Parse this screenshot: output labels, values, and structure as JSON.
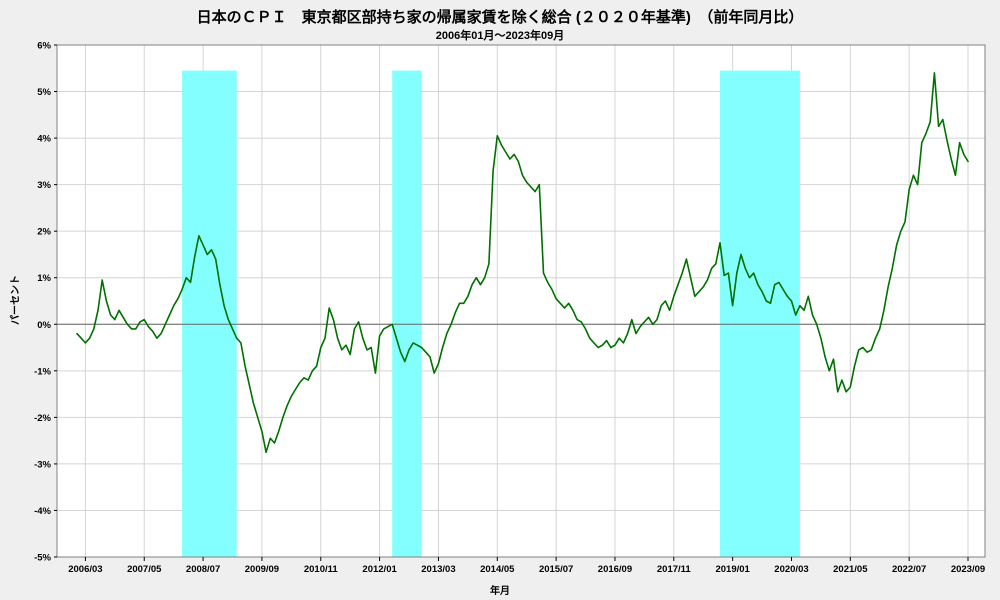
{
  "header": {
    "title": "日本のＣＰＩ　東京都区部持ち家の帰属家賃を除く総合 (２０２０年基準)　（前年同月比）",
    "subtitle": "2006年01月～2023年09月"
  },
  "chart_data": {
    "type": "line",
    "title": "日本のＣＰＩ　東京都区部持ち家の帰属家賃を除く総合 (２０２０年基準)　（前年同月比）",
    "subtitle": "2006年01月～2023年09月",
    "xlabel": "年月",
    "ylabel": "パーセント",
    "ylim": [
      -5,
      6
    ],
    "grid": true,
    "legend_position": "none",
    "y_ticks": [
      6,
      5,
      4,
      3,
      2,
      1,
      0,
      -1,
      -2,
      -3,
      -4,
      -5
    ],
    "y_tick_labels": [
      "6%",
      "5%",
      "4%",
      "3%",
      "2%",
      "1%",
      "0%",
      "-1%",
      "-2%",
      "-3%",
      "-4%",
      "-5%"
    ],
    "x_start": "2006/01",
    "x_end": "2023/09",
    "x_frequency": "monthly",
    "x_ticks": [
      {
        "index": 2,
        "label": "2006/03"
      },
      {
        "index": 16,
        "label": "2007/05"
      },
      {
        "index": 30,
        "label": "2008/07"
      },
      {
        "index": 44,
        "label": "2009/09"
      },
      {
        "index": 58,
        "label": "2010/11"
      },
      {
        "index": 72,
        "label": "2012/01"
      },
      {
        "index": 86,
        "label": "2013/03"
      },
      {
        "index": 100,
        "label": "2014/05"
      },
      {
        "index": 114,
        "label": "2015/07"
      },
      {
        "index": 128,
        "label": "2016/09"
      },
      {
        "index": 142,
        "label": "2017/11"
      },
      {
        "index": 156,
        "label": "2019/01"
      },
      {
        "index": 170,
        "label": "2020/03"
      },
      {
        "index": 184,
        "label": "2021/05"
      },
      {
        "index": 198,
        "label": "2022/07"
      },
      {
        "index": 212,
        "label": "2023/09"
      }
    ],
    "shaded_bands": {
      "color": "#84ffff",
      "top_value": 5.45,
      "periods": [
        {
          "from": "2008/02",
          "to": "2009/03",
          "start_index": 25,
          "end_index": 38
        },
        {
          "from": "2012/04",
          "to": "2012/11",
          "start_index": 75,
          "end_index": 82
        },
        {
          "from": "2018/10",
          "to": "2020/05",
          "start_index": 153,
          "end_index": 172
        }
      ]
    },
    "series": [
      {
        "name": "前年同月比",
        "color": "#007000",
        "values": [
          -0.2,
          -0.3,
          -0.4,
          -0.3,
          -0.1,
          0.3,
          0.95,
          0.5,
          0.2,
          0.1,
          0.3,
          0.15,
          0.0,
          -0.1,
          -0.1,
          0.05,
          0.1,
          -0.05,
          -0.15,
          -0.3,
          -0.2,
          0.0,
          0.2,
          0.4,
          0.55,
          0.75,
          1.0,
          0.9,
          1.45,
          1.9,
          1.7,
          1.5,
          1.6,
          1.4,
          0.85,
          0.4,
          0.1,
          -0.1,
          -0.3,
          -0.4,
          -0.9,
          -1.3,
          -1.7,
          -2.0,
          -2.3,
          -2.75,
          -2.45,
          -2.55,
          -2.3,
          -2.0,
          -1.75,
          -1.55,
          -1.4,
          -1.25,
          -1.15,
          -1.2,
          -1.0,
          -0.9,
          -0.5,
          -0.3,
          0.35,
          0.1,
          -0.3,
          -0.55,
          -0.45,
          -0.65,
          -0.1,
          0.05,
          -0.3,
          -0.55,
          -0.5,
          -1.05,
          -0.25,
          -0.1,
          -0.05,
          0.0,
          -0.3,
          -0.6,
          -0.8,
          -0.55,
          -0.4,
          -0.45,
          -0.5,
          -0.6,
          -0.7,
          -1.05,
          -0.85,
          -0.5,
          -0.2,
          0.0,
          0.25,
          0.45,
          0.45,
          0.6,
          0.85,
          1.0,
          0.85,
          1.0,
          1.3,
          3.3,
          4.05,
          3.85,
          3.7,
          3.55,
          3.65,
          3.5,
          3.2,
          3.05,
          2.95,
          2.85,
          3.0,
          1.1,
          0.9,
          0.75,
          0.55,
          0.45,
          0.35,
          0.45,
          0.3,
          0.1,
          0.05,
          -0.1,
          -0.3,
          -0.4,
          -0.5,
          -0.45,
          -0.35,
          -0.5,
          -0.45,
          -0.3,
          -0.4,
          -0.2,
          0.1,
          -0.2,
          -0.05,
          0.05,
          0.15,
          0.0,
          0.1,
          0.4,
          0.5,
          0.3,
          0.6,
          0.85,
          1.1,
          1.4,
          1.0,
          0.6,
          0.7,
          0.8,
          0.95,
          1.2,
          1.3,
          1.75,
          1.05,
          1.1,
          0.4,
          1.1,
          1.5,
          1.2,
          1.0,
          1.1,
          0.85,
          0.7,
          0.5,
          0.45,
          0.85,
          0.9,
          0.75,
          0.6,
          0.5,
          0.2,
          0.4,
          0.3,
          0.6,
          0.2,
          0.0,
          -0.3,
          -0.7,
          -1.0,
          -0.75,
          -1.45,
          -1.2,
          -1.45,
          -1.35,
          -0.9,
          -0.55,
          -0.5,
          -0.6,
          -0.55,
          -0.3,
          -0.1,
          0.3,
          0.8,
          1.2,
          1.7,
          2.0,
          2.2,
          2.9,
          3.2,
          3.0,
          3.9,
          4.1,
          4.35,
          5.4,
          4.25,
          4.4,
          3.95,
          3.55,
          3.2,
          3.9,
          3.65,
          3.5
        ]
      }
    ],
    "colors": {
      "plot_background": "#ffffff",
      "page_background": "#efefef",
      "gridline": "#d4d4d4",
      "zero_line": "#666666",
      "plot_border": "#808080",
      "line": "#007000",
      "band": "#84ffff"
    }
  }
}
